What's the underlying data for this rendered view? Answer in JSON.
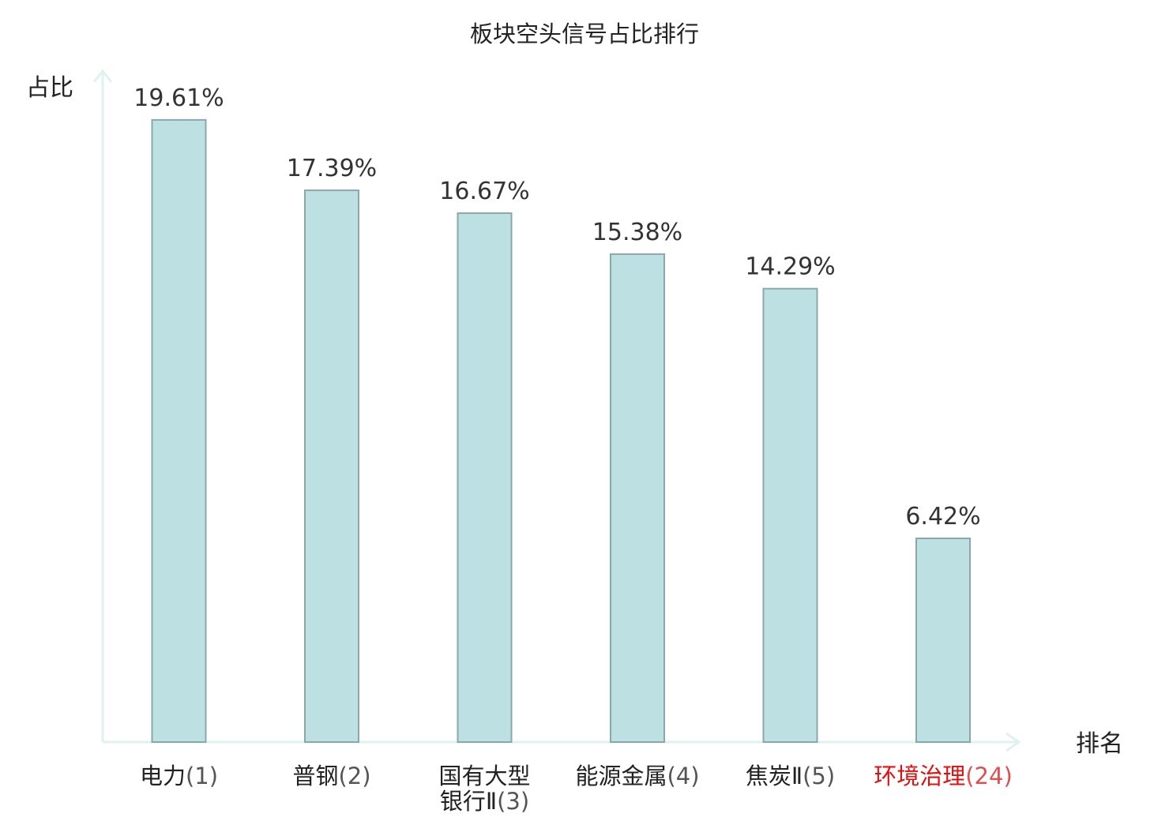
{
  "chart_data": {
    "type": "bar",
    "title": "板块空头信号占比排行",
    "ylabel": "占比",
    "xlabel": "排名",
    "ylim": [
      0,
      21.1
    ],
    "grid": false,
    "categories": [
      {
        "lines": [
          "电力"
        ],
        "rank": "(1)",
        "highlight": false
      },
      {
        "lines": [
          "普钢"
        ],
        "rank": "(2)",
        "highlight": false
      },
      {
        "lines": [
          "国有大型",
          "银行Ⅱ"
        ],
        "rank": "(3)",
        "highlight": false
      },
      {
        "lines": [
          "能源金属"
        ],
        "rank": "(4)",
        "highlight": false
      },
      {
        "lines": [
          "焦炭Ⅱ"
        ],
        "rank": "(5)",
        "highlight": false
      },
      {
        "lines": [
          "环境治理"
        ],
        "rank": "(24)",
        "highlight": true
      }
    ],
    "values": [
      19.61,
      17.39,
      16.67,
      15.38,
      14.29,
      6.42
    ],
    "value_labels": [
      "19.61%",
      "17.39%",
      "16.67%",
      "15.38%",
      "14.29%",
      "6.42%"
    ]
  },
  "colors": {
    "bar_fill": "#bde0e3",
    "bar_stroke": "#8aa8aa",
    "axis": "#dff2f0",
    "highlight": "#e01010"
  }
}
